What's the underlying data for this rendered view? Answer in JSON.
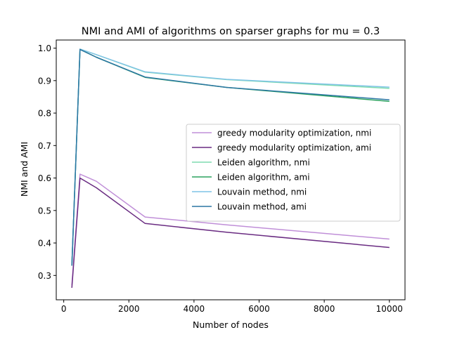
{
  "chart_data": {
    "type": "line",
    "title": "NMI and AMI of algorithms on sparser graphs for mu = 0.3",
    "xlabel": "Number of nodes",
    "ylabel": "NMI and AMI",
    "xlim": [
      -230,
      10480
    ],
    "ylim": [
      0.225,
      1.025
    ],
    "xticks": [
      0,
      2000,
      4000,
      6000,
      8000,
      10000
    ],
    "yticks": [
      0.3,
      0.4,
      0.5,
      0.6,
      0.7,
      0.8,
      0.9,
      1.0
    ],
    "xtick_labels": [
      "0",
      "2000",
      "4000",
      "6000",
      "8000",
      "10000"
    ],
    "ytick_labels": [
      "0.3",
      "0.4",
      "0.5",
      "0.6",
      "0.7",
      "0.8",
      "0.9",
      "1.0"
    ],
    "grid": false,
    "legend_position": "center-right",
    "x": [
      250,
      500,
      1000,
      2500,
      5000,
      10000
    ],
    "series": [
      {
        "name": "greedy modularity optimization, nmi",
        "color": "#c08fd8",
        "values": [
          0.27,
          0.612,
          0.59,
          0.48,
          0.456,
          0.412
        ]
      },
      {
        "name": "greedy modularity optimization, ami",
        "color": "#6a2c82",
        "values": [
          0.262,
          0.6,
          0.57,
          0.46,
          0.433,
          0.386
        ]
      },
      {
        "name": "Leiden algorithm, nmi",
        "color": "#7fdcb0",
        "values": [
          0.33,
          0.997,
          0.98,
          0.926,
          0.903,
          0.876
        ]
      },
      {
        "name": "Leiden algorithm, ami",
        "color": "#2ca25f",
        "values": [
          0.33,
          0.996,
          0.972,
          0.91,
          0.879,
          0.836
        ]
      },
      {
        "name": "Louvain method, nmi",
        "color": "#7fc3e6",
        "values": [
          0.33,
          0.997,
          0.98,
          0.927,
          0.904,
          0.88
        ]
      },
      {
        "name": "Louvain method, ami",
        "color": "#2b76a3",
        "values": [
          0.33,
          0.996,
          0.972,
          0.911,
          0.879,
          0.841
        ]
      }
    ]
  }
}
